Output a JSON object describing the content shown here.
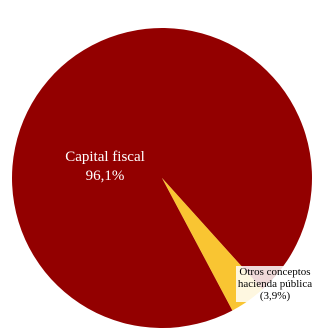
{
  "chart_data": {
    "type": "pie",
    "categories": [
      "Capital fiscal",
      "Otros conceptos hacienda pública"
    ],
    "values": [
      96.1,
      3.9
    ],
    "value_labels": [
      "96,1%",
      "(3,9%)"
    ],
    "colors": [
      "#930000",
      "#f9c532"
    ]
  }
}
